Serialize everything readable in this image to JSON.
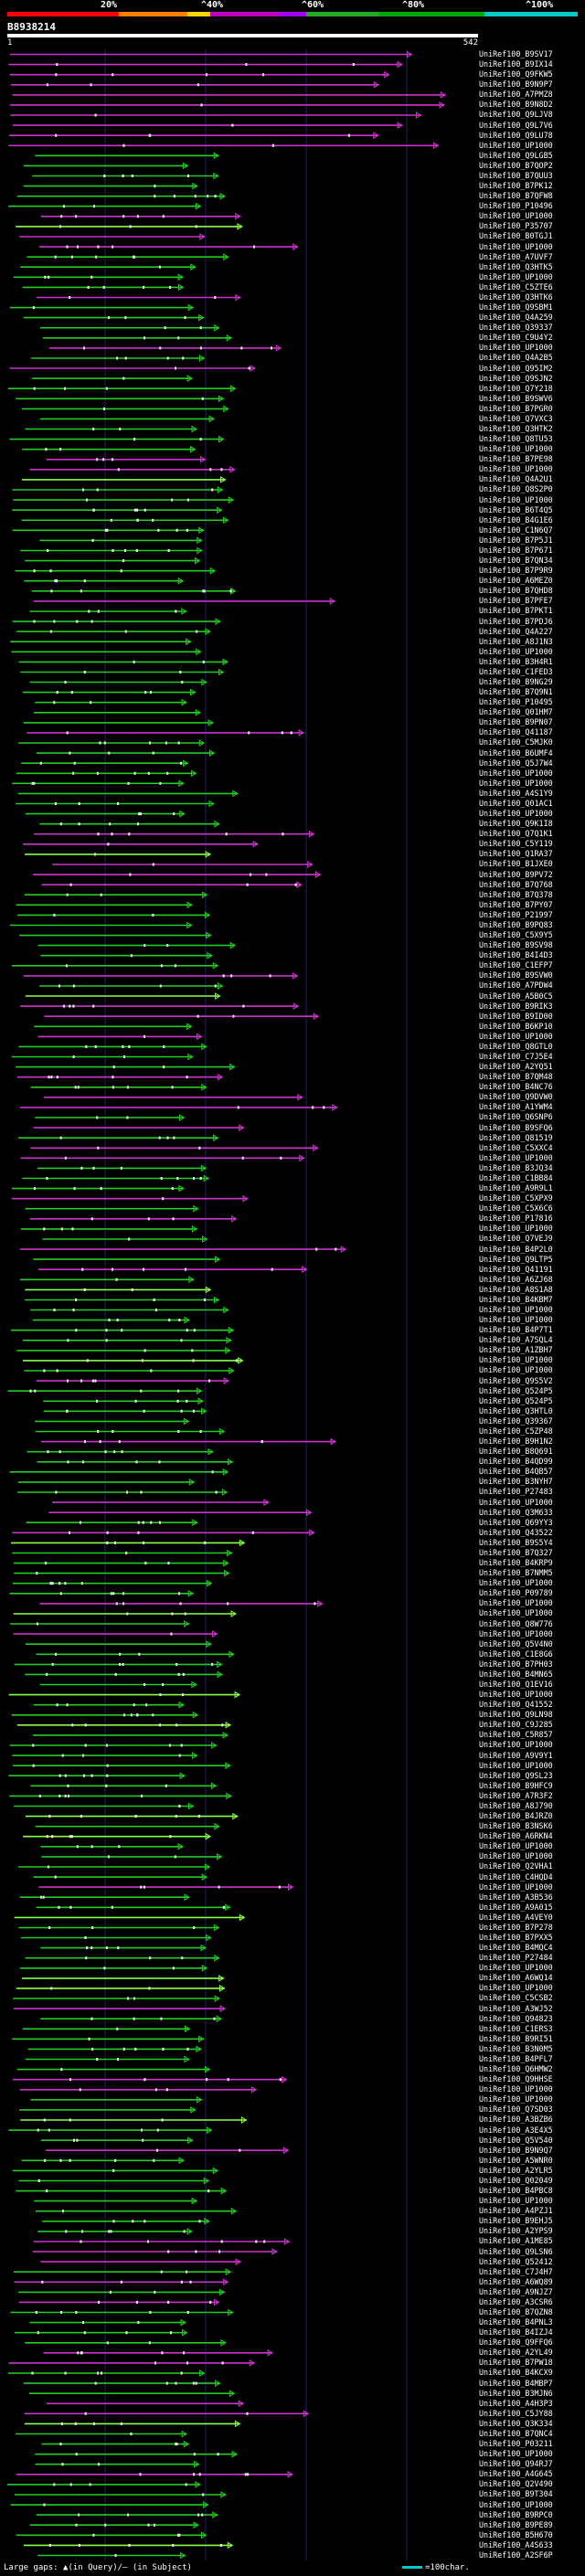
{
  "legend": {
    "labels": [
      "20%",
      "^40%",
      "^60%",
      "^80%",
      "^100%"
    ],
    "colors": [
      "#ff0000",
      "#ff7f00",
      "#ffd700",
      "#c000c0",
      "#a000ff",
      "#22aa22",
      "#00aa00",
      "#00c8c8"
    ]
  },
  "query": {
    "id": "B8938214",
    "start": "1",
    "end": "542"
  },
  "hits": [
    "UniRef100_B9SV17",
    "UniRef100_B9IX14",
    "UniRef100_Q9FKW5",
    "UniRef100_B9N9P7",
    "UniRef100_A7PMZ8",
    "UniRef100_B9N8D2",
    "UniRef100_Q9LJV8",
    "UniRef100_Q9L7V6",
    "UniRef100_Q9LU78",
    "UniRef100_UP1000",
    "UniRef100_Q9LGB5",
    "UniRef100_B7QOP2",
    "UniRef100_B7QUU3",
    "UniRef100_B7PK12",
    "UniRef100_B7QFW8",
    "UniRef100_P10496",
    "UniRef100_UP1000",
    "UniRef100_P35707",
    "UniRef100_B0TGJ1",
    "UniRef100_UP1000",
    "UniRef100_A7UVF7",
    "UniRef100_Q3HTK5",
    "UniRef100_UP1000",
    "UniRef100_C5ZTE6",
    "UniRef100_Q3HTK6",
    "UniRef100_Q9SBM1",
    "UniRef100_Q4A259",
    "UniRef100_Q39337",
    "UniRef100_C9U4Y2",
    "UniRef100_UP1000",
    "UniRef100_Q4A2B5",
    "UniRef100_Q95IM2",
    "UniRef100_Q9SJN2",
    "UniRef100_Q7Y218",
    "UniRef100_B9SWV6",
    "UniRef100_B7PGR0",
    "UniRef100_Q7VXC3",
    "UniRef100_Q3HTK2",
    "UniRef100_Q8TU53",
    "UniRef100_UP1000",
    "UniRef100_B7PE98",
    "UniRef100_UP1000",
    "UniRef100_Q4A2U1",
    "UniRef100_Q8S2P0",
    "UniRef100_UP1000",
    "UniRef100_B6T4Q5",
    "UniRef100_B4G1E6",
    "UniRef100_C1N6Q7",
    "UniRef100_B7P5J1",
    "UniRef100_B7P671",
    "UniRef100_B7QN34",
    "UniRef100_B7P9R9",
    "UniRef100_A6MEZ0",
    "UniRef100_B7QHD8",
    "UniRef100_B7PFE7",
    "UniRef100_B7PKT1",
    "UniRef100_B7PDJ6",
    "UniRef100_Q4A227",
    "UniRef100_A8J1N3",
    "UniRef100_UP1000",
    "UniRef100_B3H4R1",
    "UniRef100_C1FED3",
    "UniRef100_B9NG29",
    "UniRef100_B7Q9N1",
    "UniRef100_P10495",
    "UniRef100_Q01HM7",
    "UniRef100_B9PN07",
    "UniRef100_Q41187",
    "UniRef100_C5MJK0",
    "UniRef100_B6UMF4",
    "UniRef100_Q5J7W4",
    "UniRef100_UP1000",
    "UniRef100_UP1000",
    "UniRef100_A4S1Y9",
    "UniRef100_Q01AC1",
    "UniRef100_UP1000",
    "UniRef100_Q9K1I8",
    "UniRef100_Q7Q1K1",
    "UniRef100_C5Y119",
    "UniRef100_Q1RA37",
    "UniRef100_B1JXE0",
    "UniRef100_B9PV72",
    "UniRef100_B7Q768",
    "UniRef100_B7Q378",
    "UniRef100_B7PY07",
    "UniRef100_P21997",
    "UniRef100_B9PQ83",
    "UniRef100_C5X9Y5",
    "UniRef100_B9SV98",
    "UniRef100_B4I4D3",
    "UniRef100_C1EFP7",
    "UniRef100_B9SVW0",
    "UniRef100_A7PDW4",
    "UniRef100_A5B0C5",
    "UniRef100_B9RIK3",
    "UniRef100_B9ID00",
    "UniRef100_B6KP10",
    "UniRef100_UP1000",
    "UniRef100_Q8GTL0",
    "UniRef100_C7J5E4",
    "UniRef100_A2YQ51",
    "UniRef100_B7QM48",
    "UniRef100_B4NC76",
    "UniRef100_Q9DVW0",
    "UniRef100_A1YWM4",
    "UniRef100_Q6SNP6",
    "UniRef100_B9SFQ6",
    "UniRef100_Q81519",
    "UniRef100_C5XXC4",
    "UniRef100_UP1000",
    "UniRef100_B3JQ34",
    "UniRef100_C1BB84",
    "UniRef100_A9R9L1",
    "UniRef100_C5XPX9",
    "UniRef100_C5X6C6",
    "UniRef100_P17816",
    "UniRef100_UP1000",
    "UniRef100_Q7VEJ9",
    "UniRef100_B4P2L0",
    "UniRef100_Q9LTP5",
    "UniRef100_Q41191",
    "UniRef100_A6ZJ68",
    "UniRef100_A8S1A8",
    "UniRef100_B4KBM7",
    "UniRef100_UP1000",
    "UniRef100_UP1000",
    "UniRef100_B4P7T1",
    "UniRef100_A7SQL4",
    "UniRef100_A1ZBH7",
    "UniRef100_UP1000",
    "UniRef100_UP1000",
    "UniRef100_Q9S5V2",
    "UniRef100_Q524P5",
    "UniRef100_Q524P5",
    "UniRef100_Q3HTL0",
    "UniRef100_Q39367",
    "UniRef100_C5ZP48",
    "UniRef100_B9H1N2",
    "UniRef100_B8Q691",
    "UniRef100_B4QD99",
    "UniRef100_B4QB57",
    "UniRef100_B3NYH7",
    "UniRef100_P27483",
    "UniRef100_UP1000",
    "UniRef100_Q3M633",
    "UniRef100_Q69YY3",
    "UniRef100_Q43522",
    "UniRef100_B9S5Y4",
    "UniRef100_B7Q327",
    "UniRef100_B4KRP9",
    "UniRef100_B7NMM5",
    "UniRef100_UP1000",
    "UniRef100_P09789",
    "UniRef100_UP1000",
    "UniRef100_UP1000",
    "UniRef100_Q8W776",
    "UniRef100_UP1000",
    "UniRef100_Q5V4N0",
    "UniRef100_C1E8G6",
    "UniRef100_B7PH03",
    "UniRef100_B4MN65",
    "UniRef100_Q1EV16",
    "UniRef100_UP1000",
    "UniRef100_Q41552",
    "UniRef100_Q9LN98",
    "UniRef100_C9J285",
    "UniRef100_C5R857",
    "UniRef100_UP1000",
    "UniRef100_A9V9Y1",
    "UniRef100_UP1000",
    "UniRef100_Q9SL23",
    "UniRef100_B9HFC9",
    "UniRef100_A7R3F2",
    "UniRef100_A8J790",
    "UniRef100_B4JRZ0",
    "UniRef100_B3NSK6",
    "UniRef100_A6RKN4",
    "UniRef100_UP1000",
    "UniRef100_UP1000",
    "UniRef100_Q2VHA1",
    "UniRef100_C4HQD4",
    "UniRef100_UP1000",
    "UniRef100_A3B536",
    "UniRef100_A9A015",
    "UniRef100_A4VEY0",
    "UniRef100_B7P278",
    "UniRef100_B7PXX5",
    "UniRef100_B4MQC4",
    "UniRef100_P27484",
    "UniRef100_UP1000",
    "UniRef100_A6WQ14",
    "UniRef100_UP1000",
    "UniRef100_C5CSB2",
    "UniRef100_A3WJ52",
    "UniRef100_Q94823",
    "UniRef100_C1ERS3",
    "UniRef100_B9RI51",
    "UniRef100_B3N0M5",
    "UniRef100_B4PFL7",
    "UniRef100_Q6HMW2",
    "UniRef100_Q9HHSE",
    "UniRef100_UP1000",
    "UniRef100_UP1000",
    "UniRef100_Q7SD03",
    "UniRef100_A3BZB6",
    "UniRef100_A3E4X5",
    "UniRef100_Q5V540",
    "UniRef100_B9N9Q7",
    "UniRef100_A5WNR0",
    "UniRef100_A2YLR5",
    "UniRef100_Q02049",
    "UniRef100_B4PBC8",
    "UniRef100_UP1000",
    "UniRef100_A4PZJ1",
    "UniRef100_B9EHJ5",
    "UniRef100_A2YPS9",
    "UniRef100_A1ME85",
    "UniRef100_Q9LSN6",
    "UniRef100_Q52412",
    "UniRef100_C7J4H7",
    "UniRef100_A6WQ89",
    "UniRef100_A9NJZ7",
    "UniRef100_A3CSR6",
    "UniRef100_B7QZN8",
    "UniRef100_B4PNL3",
    "UniRef100_B4IZJ4",
    "UniRef100_Q9FFQ6",
    "UniRef100_A2YL49",
    "UniRef100_B7PW18",
    "UniRef100_B4KCX9",
    "UniRef100_B4MBP7",
    "UniRef100_B3MJN6",
    "UniRef100_A4H3P3",
    "UniRef100_C5JY88",
    "UniRef100_Q3K334",
    "UniRef100_B7QNC4",
    "UniRef100_P03211",
    "UniRef100_UP1000",
    "UniRef100_Q94RJ7",
    "UniRef100_A4G645",
    "UniRef100_Q2V490",
    "UniRef100_B9T304",
    "UniRef100_UP1000",
    "UniRef100_B9RPC0",
    "UniRef100_B9PE89",
    "UniRef100_B5H670",
    "UniRef100_A4S633",
    "UniRef100_A2SF6P"
  ],
  "footer": {
    "gaps_text": "Large gaps: ▲(in Query)/— (in Subject)",
    "scale_text": "=100char."
  }
}
